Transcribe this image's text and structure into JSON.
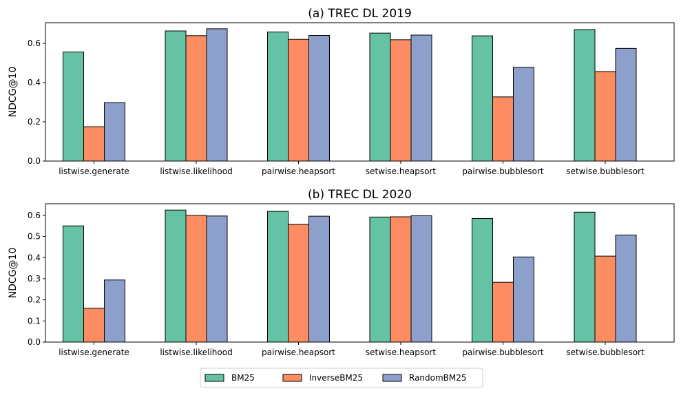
{
  "legend": {
    "placement": "bottom-center",
    "entries": [
      "BM25",
      "InverseBM25",
      "RandomBM25"
    ]
  },
  "colors": {
    "BM25": "#66c2a5",
    "InverseBM25": "#fc8d62",
    "RandomBM25": "#8da0cb",
    "edge": "#000000"
  },
  "chart_data": [
    {
      "type": "bar",
      "title": "(a) TREC DL 2019",
      "xlabel": "",
      "ylabel": "NDCG@10",
      "ylim": [
        0,
        0.705
      ],
      "yticks": [
        0.0,
        0.2,
        0.4,
        0.6
      ],
      "ytick_labels": [
        "0.0",
        "0.2",
        "0.4",
        "0.6"
      ],
      "grid": false,
      "categories": [
        "listwise.generate",
        "listwise.likelihood",
        "pairwise.heapsort",
        "setwise.heapsort",
        "pairwise.bubblesort",
        "setwise.bubblesort"
      ],
      "series": [
        {
          "name": "BM25",
          "values": [
            0.556,
            0.663,
            0.658,
            0.652,
            0.638,
            0.67
          ]
        },
        {
          "name": "InverseBM25",
          "values": [
            0.175,
            0.639,
            0.62,
            0.618,
            0.327,
            0.456
          ]
        },
        {
          "name": "RandomBM25",
          "values": [
            0.298,
            0.674,
            0.64,
            0.642,
            0.478,
            0.574
          ]
        }
      ]
    },
    {
      "type": "bar",
      "title": "(b) TREC DL 2020",
      "xlabel": "",
      "ylabel": "NDCG@10",
      "ylim": [
        0,
        0.655
      ],
      "yticks": [
        0.0,
        0.1,
        0.2,
        0.3,
        0.4,
        0.5,
        0.6
      ],
      "ytick_labels": [
        "0.0",
        "0.1",
        "0.2",
        "0.3",
        "0.4",
        "0.5",
        "0.6"
      ],
      "grid": false,
      "categories": [
        "listwise.generate",
        "listwise.likelihood",
        "pairwise.heapsort",
        "setwise.heapsort",
        "pairwise.bubblesort",
        "setwise.bubblesort"
      ],
      "series": [
        {
          "name": "BM25",
          "values": [
            0.55,
            0.625,
            0.619,
            0.592,
            0.585,
            0.615
          ]
        },
        {
          "name": "InverseBM25",
          "values": [
            0.16,
            0.6,
            0.557,
            0.593,
            0.283,
            0.407
          ]
        },
        {
          "name": "RandomBM25",
          "values": [
            0.294,
            0.597,
            0.596,
            0.598,
            0.403,
            0.507
          ]
        }
      ]
    }
  ]
}
